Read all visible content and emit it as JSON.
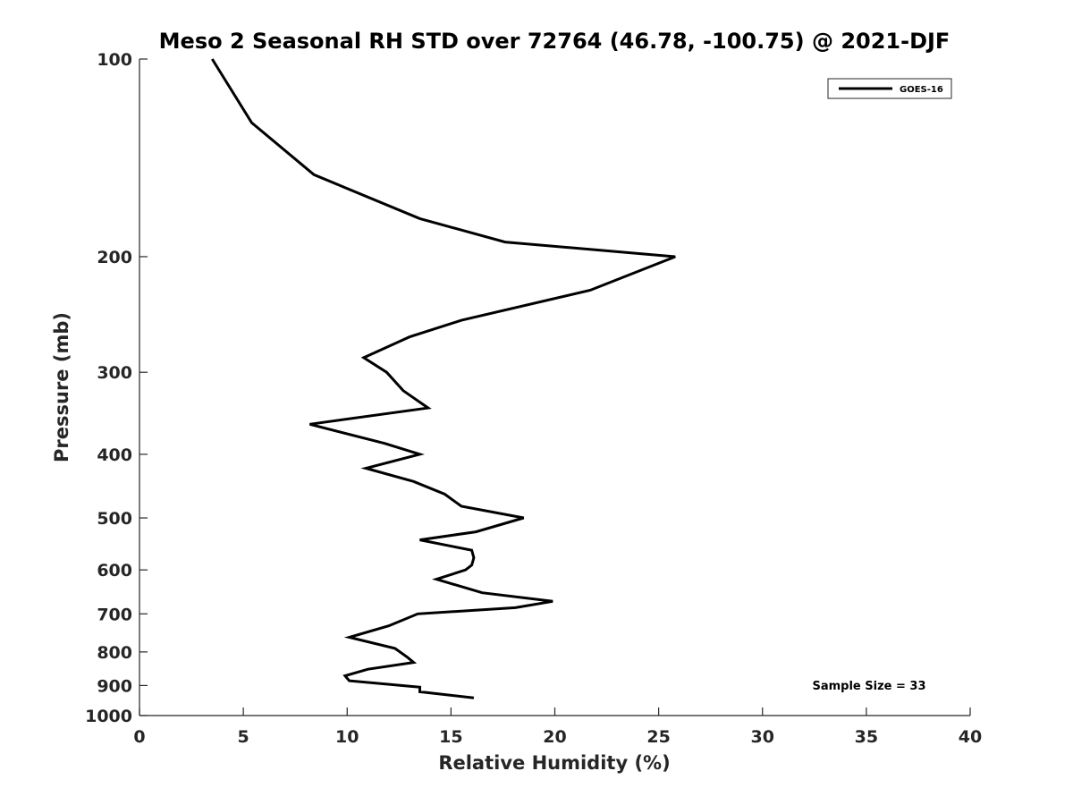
{
  "chart_data": {
    "type": "line",
    "title": "Meso 2 Seasonal RH STD over 72764 (46.78, -100.75) @ 2021-DJF",
    "xlabel": "Relative Humidity (%)",
    "ylabel": "Pressure (mb)",
    "xlim": [
      0,
      40
    ],
    "ylim": [
      100,
      1000
    ],
    "y_scale": "log",
    "y_reversed": true,
    "x_ticks": [
      0,
      5,
      10,
      15,
      20,
      25,
      30,
      35,
      40
    ],
    "y_ticks": [
      100,
      200,
      300,
      400,
      500,
      600,
      700,
      800,
      900,
      1000
    ],
    "grid": false,
    "legend_position": "top-right",
    "series": [
      {
        "name": "GOES-16",
        "color": "#000000",
        "points": [
          {
            "x": 3.5,
            "y": 100
          },
          {
            "x": 5.4,
            "y": 125
          },
          {
            "x": 8.4,
            "y": 150
          },
          {
            "x": 13.5,
            "y": 175
          },
          {
            "x": 17.6,
            "y": 190
          },
          {
            "x": 25.8,
            "y": 200
          },
          {
            "x": 21.7,
            "y": 225
          },
          {
            "x": 15.5,
            "y": 250
          },
          {
            "x": 13.0,
            "y": 265
          },
          {
            "x": 10.8,
            "y": 285
          },
          {
            "x": 11.9,
            "y": 300
          },
          {
            "x": 12.7,
            "y": 320
          },
          {
            "x": 13.9,
            "y": 340
          },
          {
            "x": 8.2,
            "y": 360
          },
          {
            "x": 11.8,
            "y": 385
          },
          {
            "x": 13.5,
            "y": 400
          },
          {
            "x": 10.9,
            "y": 420
          },
          {
            "x": 13.2,
            "y": 440
          },
          {
            "x": 14.7,
            "y": 460
          },
          {
            "x": 15.5,
            "y": 480
          },
          {
            "x": 18.5,
            "y": 500
          },
          {
            "x": 16.2,
            "y": 525
          },
          {
            "x": 13.5,
            "y": 540
          },
          {
            "x": 16.0,
            "y": 560
          },
          {
            "x": 16.1,
            "y": 575
          },
          {
            "x": 16.0,
            "y": 590
          },
          {
            "x": 15.7,
            "y": 600
          },
          {
            "x": 14.3,
            "y": 620
          },
          {
            "x": 16.5,
            "y": 650
          },
          {
            "x": 19.9,
            "y": 670
          },
          {
            "x": 18.1,
            "y": 685
          },
          {
            "x": 13.4,
            "y": 700
          },
          {
            "x": 12.0,
            "y": 730
          },
          {
            "x": 10.1,
            "y": 760
          },
          {
            "x": 12.3,
            "y": 790
          },
          {
            "x": 12.9,
            "y": 815
          },
          {
            "x": 13.2,
            "y": 830
          },
          {
            "x": 11.0,
            "y": 850
          },
          {
            "x": 9.9,
            "y": 870
          },
          {
            "x": 10.1,
            "y": 885
          },
          {
            "x": 13.5,
            "y": 905
          },
          {
            "x": 13.5,
            "y": 920
          },
          {
            "x": 16.1,
            "y": 940
          }
        ]
      }
    ],
    "annotations": [
      "Sample Size = 33"
    ]
  }
}
